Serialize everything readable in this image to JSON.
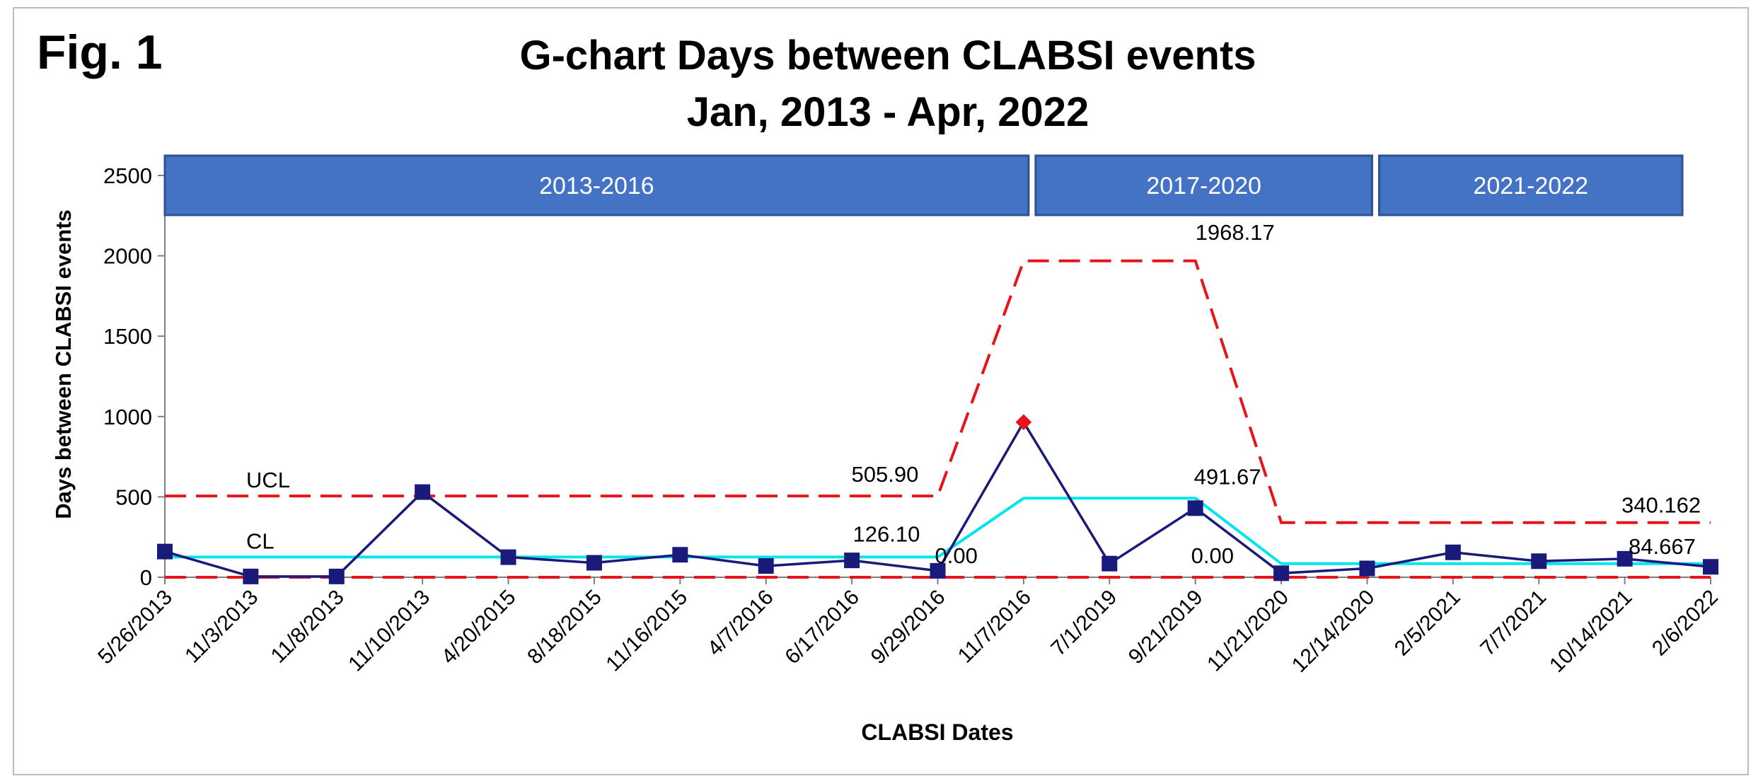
{
  "figure_label": "Fig. 1",
  "chart_data": {
    "type": "line",
    "title": "G-chart Days between CLABSI events",
    "subtitle": "Jan, 2013 - Apr, 2022",
    "xlabel": "CLABSI Dates",
    "ylabel": "Days between CLABSI events",
    "ylim": [
      0,
      2500
    ],
    "yticks": [
      "0",
      "500",
      "1000",
      "1500",
      "2000",
      "2500"
    ],
    "categories": [
      "5/26/2013",
      "11/3/2013",
      "11/8/2013",
      "11/10/2013",
      "4/20/2015",
      "8/18/2015",
      "11/16/2015",
      "4/7/2016",
      "6/17/2016",
      "9/29/2016",
      "11/7/2016",
      "7/1/2019",
      "9/21/2019",
      "11/21/2020",
      "12/14/2020",
      "2/5/2021",
      "7/7/2021",
      "10/14/2021",
      "2/6/2022"
    ],
    "series": [
      {
        "name": "",
        "role": "observed",
        "color": "#1a1a7a",
        "values": [
          160,
          5,
          5,
          530,
          125,
          90,
          140,
          70,
          105,
          40,
          965,
          85,
          430,
          25,
          55,
          155,
          100,
          115,
          65
        ],
        "out_of_control_index": 10,
        "out_of_control_color": "#e8141c"
      },
      {
        "name": "CL",
        "role": "center-line",
        "color": "#00e5ee",
        "values": [
          126.1,
          126.1,
          126.1,
          126.1,
          126.1,
          126.1,
          126.1,
          126.1,
          126.1,
          126.1,
          491.67,
          491.67,
          491.67,
          84.667,
          84.667,
          84.667,
          84.667,
          84.667,
          84.667
        ]
      },
      {
        "name": "UCL",
        "role": "upper-control-limit",
        "color": "#e8141c",
        "values": [
          505.9,
          505.9,
          505.9,
          505.9,
          505.9,
          505.9,
          505.9,
          505.9,
          505.9,
          505.9,
          1968.17,
          1968.17,
          1968.17,
          340.162,
          340.162,
          340.162,
          340.162,
          340.162,
          340.162
        ]
      },
      {
        "name": "",
        "role": "lower-control-limit",
        "color": "#e8141c",
        "values": [
          0,
          0,
          0,
          0,
          0,
          0,
          0,
          0,
          0,
          0,
          0,
          0,
          0,
          0,
          0,
          0,
          0,
          0,
          0
        ]
      }
    ],
    "periods": [
      {
        "label": "2013-2016",
        "from_index": 0,
        "to_index": 10
      },
      {
        "label": "2017-2020",
        "from_index": 10,
        "to_index": 14
      },
      {
        "label": "2021-2022",
        "from_index": 14,
        "to_index": 18
      }
    ],
    "period_color": "#4472c4",
    "annotations": [
      {
        "text": "505.90",
        "near_series": "upper-control-limit",
        "index": 9
      },
      {
        "text": "1968.17",
        "near_series": "upper-control-limit",
        "index": 12
      },
      {
        "text": "340.162",
        "near_series": "upper-control-limit",
        "index": 18
      },
      {
        "text": "126.10",
        "near_series": "center-line",
        "index": 9
      },
      {
        "text": "491.67",
        "near_series": "center-line",
        "index": 12
      },
      {
        "text": "84.667",
        "near_series": "center-line",
        "index": 18
      },
      {
        "text": "0.00",
        "near_series": "lower-control-limit",
        "index": 9
      },
      {
        "text": "0.00",
        "near_series": "lower-control-limit",
        "index": 12
      }
    ],
    "legend": "none",
    "grid": false
  }
}
